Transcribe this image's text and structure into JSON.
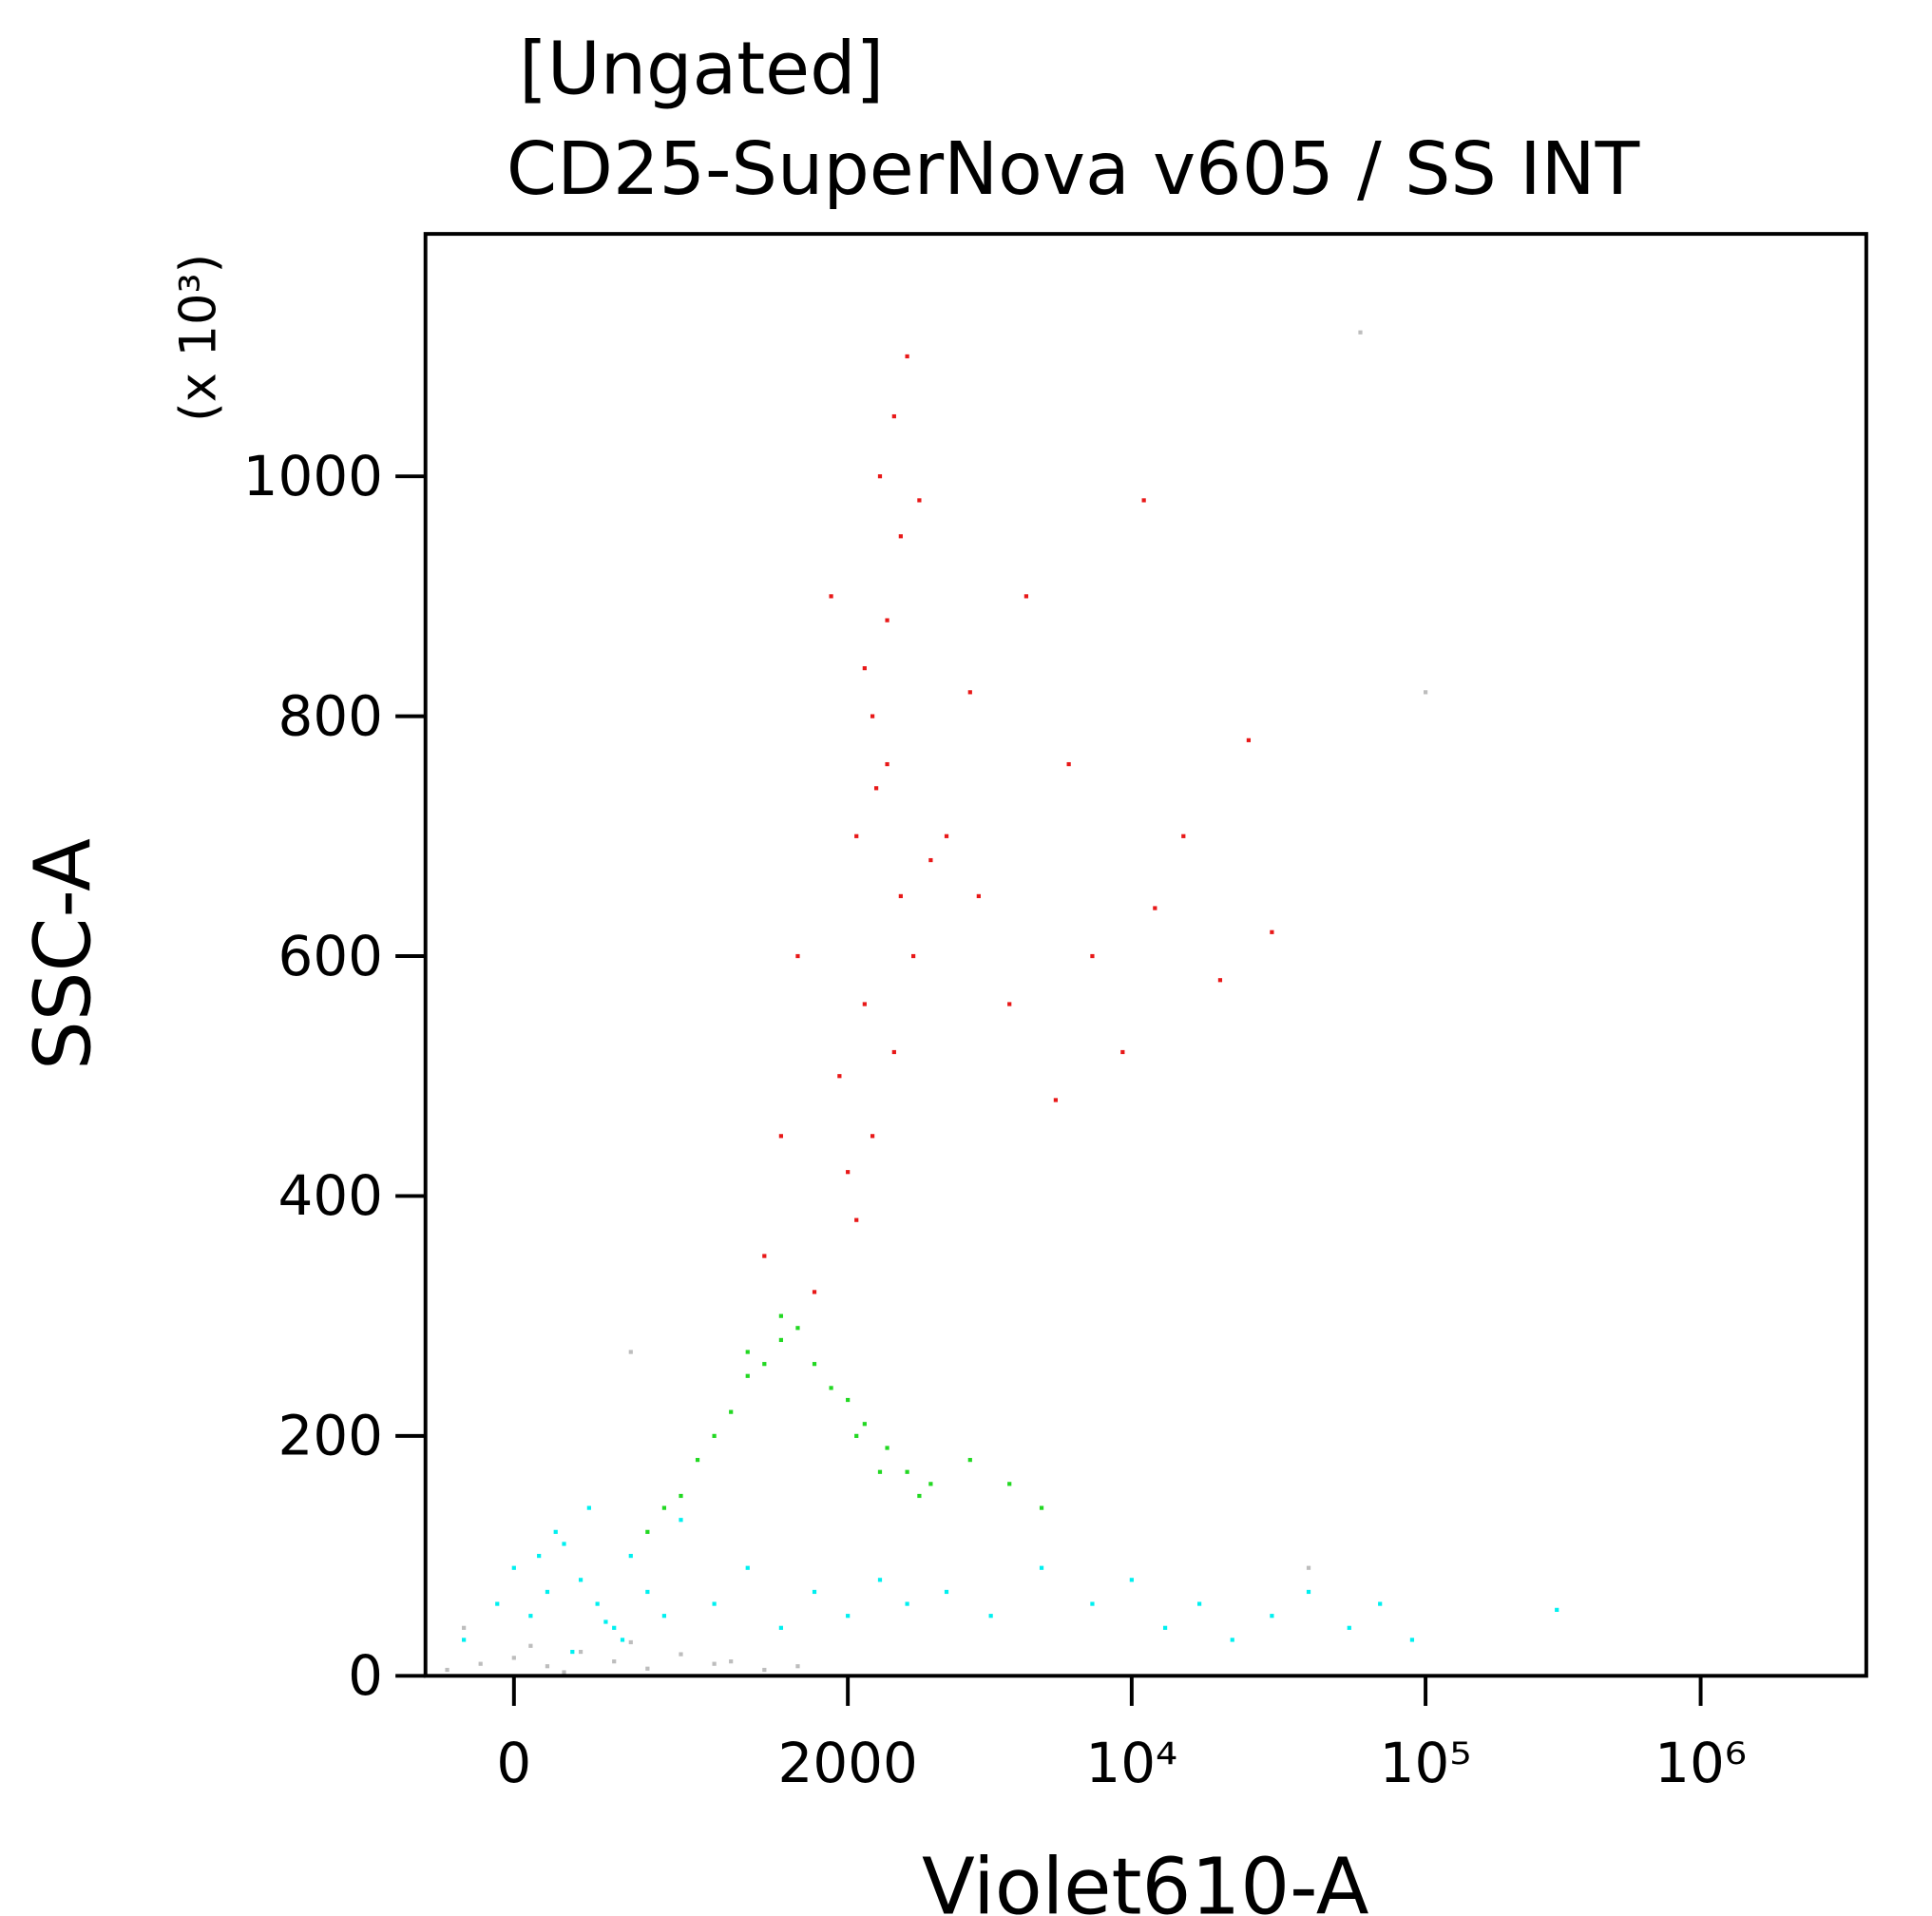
{
  "chart_data": {
    "type": "scatter",
    "title": "[Ungated]",
    "subtitle": "CD25-SuperNova v605 / SS INT",
    "x_label": "Violet610-A",
    "y_label": "SSC-A",
    "y_unit": "(x 10³)",
    "x_scale": "logicle",
    "xlim": [
      -530,
      4000000
    ],
    "xticks": [
      0,
      2000,
      {
        "value": 10000,
        "label": "10⁴"
      },
      {
        "value": 100000,
        "label": "10⁵"
      },
      {
        "value": 1000000,
        "label": "10⁶"
      }
    ],
    "ylim": [
      0,
      1200
    ],
    "yticks": [
      0,
      200,
      400,
      600,
      800,
      1000
    ],
    "grid": false,
    "series": [
      {
        "color": "#bdbdbd",
        "x": [
          -400,
          -200,
          0,
          200,
          400,
          600,
          800,
          1000,
          1200,
          1500,
          100,
          300,
          700,
          1300,
          1700,
          -300,
          40000,
          100000,
          60000,
          700
        ],
        "y": [
          5,
          10,
          15,
          8,
          20,
          12,
          6,
          18,
          10,
          5,
          25,
          3,
          28,
          12,
          8,
          40,
          90,
          820,
          1120,
          270
        ]
      },
      {
        "color": "#00f0f0",
        "x": [
          -300,
          -100,
          0,
          100,
          200,
          300,
          400,
          500,
          600,
          700,
          800,
          900,
          1000,
          1200,
          1400,
          1600,
          1800,
          2000,
          2400,
          2800,
          3500,
          4500,
          6000,
          8000,
          10000,
          13000,
          17000,
          22000,
          30000,
          40000,
          55000,
          70000,
          90000,
          300000,
          250,
          450,
          650,
          350,
          150,
          550
        ],
        "y": [
          30,
          60,
          90,
          50,
          70,
          110,
          80,
          60,
          40,
          100,
          70,
          50,
          130,
          60,
          90,
          40,
          70,
          50,
          80,
          60,
          70,
          50,
          90,
          60,
          80,
          40,
          60,
          30,
          50,
          70,
          40,
          60,
          30,
          55,
          120,
          140,
          30,
          20,
          100,
          45
        ]
      },
      {
        "color": "#22d822",
        "x": [
          1000,
          1200,
          1400,
          1600,
          1800,
          2000,
          2200,
          2500,
          2800,
          3200,
          900,
          1100,
          1300,
          1500,
          1700,
          1900,
          2100,
          2400,
          3000,
          4000,
          5000,
          6000,
          800,
          1400,
          1600
        ],
        "y": [
          150,
          200,
          250,
          280,
          260,
          230,
          210,
          190,
          170,
          160,
          140,
          180,
          220,
          260,
          290,
          240,
          200,
          170,
          150,
          180,
          160,
          140,
          120,
          270,
          300
        ]
      },
      {
        "color": "#e81818",
        "x": [
          1800,
          2100,
          2300,
          2600,
          2900,
          3200,
          2500,
          2200,
          1900,
          2700,
          3500,
          4200,
          5000,
          6500,
          8000,
          9500,
          12000,
          15000,
          20000,
          30000,
          2400,
          2600,
          2800,
          2300,
          2100,
          1700,
          1600,
          1500,
          2000,
          2500,
          3000,
          2200,
          2700,
          1950,
          2350,
          4000,
          5500,
          7000,
          11000,
          25000
        ],
        "y": [
          320,
          380,
          450,
          520,
          600,
          680,
          760,
          840,
          900,
          950,
          700,
          650,
          560,
          480,
          600,
          520,
          640,
          700,
          580,
          620,
          1000,
          1050,
          1100,
          800,
          700,
          600,
          450,
          350,
          420,
          880,
          980,
          560,
          650,
          500,
          740,
          820,
          900,
          760,
          980,
          780
        ]
      }
    ]
  }
}
